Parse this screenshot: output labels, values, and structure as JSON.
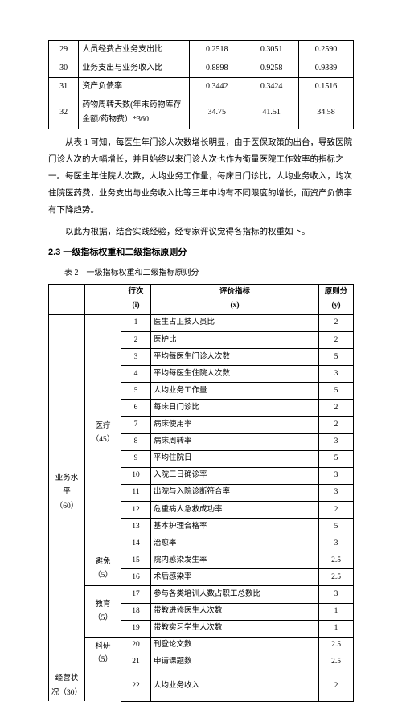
{
  "table1": {
    "rows": [
      {
        "n": "29",
        "label": "人员经费占业务支出比",
        "v1": "0.2518",
        "v2": "0.3051",
        "v3": "0.2590"
      },
      {
        "n": "30",
        "label": "业务支出与业务收入比",
        "v1": "0.8898",
        "v2": "0.9258",
        "v3": "0.9389"
      },
      {
        "n": "31",
        "label": "资产负债率",
        "v1": "0.3442",
        "v2": "0.3424",
        "v3": "0.1516"
      },
      {
        "n": "32",
        "label": "药物周转天数(年末药物库存金额/药物费）*360",
        "v1": "34.75",
        "v2": "41.51",
        "v3": "34.58"
      }
    ]
  },
  "paragraphs": {
    "p1": "从表 1 可知，每医生年门诊人次数增长明显，由于医保政策的出台，导致医院门诊人次的大幅增长，并且始终以来门诊人次也作为衡量医院工作效率的指标之一。每医生年住院人次数，人均业务工作量，每床日门诊比，人均业务收入，均次住院医药费，业务支出与业务收入比等三年中均有不同限度的增长，而资产负债率有下降趋势。",
    "p2": "以此为根据，结合实践经验，经专家评议觉得各指标的权重如下。"
  },
  "heading": "2.3 一级指标权重和二级指标原则分",
  "caption": "表 2　一级指标权重和二级指标原则分",
  "table2": {
    "header": {
      "c1": "",
      "c2": "",
      "c3": "行次\n(i)",
      "c4": "评价指标\n(x)",
      "c5": "原则分\n(y)"
    },
    "groups": [
      {
        "col1": "业务水\n平\n（60）",
        "sub": [
          {
            "col2": "医疗\n（45）",
            "rows": [
              {
                "n": "1",
                "label": "医生占卫技人员比",
                "y": "2"
              },
              {
                "n": "2",
                "label": "医护比",
                "y": "2"
              },
              {
                "n": "3",
                "label": "平均每医生门诊人次数",
                "y": "5"
              },
              {
                "n": "4",
                "label": "平均每医生住院人次数",
                "y": "3"
              },
              {
                "n": "5",
                "label": "人均业务工作量",
                "y": "5"
              },
              {
                "n": "6",
                "label": "每床日门诊比",
                "y": "2"
              },
              {
                "n": "7",
                "label": "病床使用率",
                "y": "2"
              },
              {
                "n": "8",
                "label": "病床周转率",
                "y": "3"
              },
              {
                "n": "9",
                "label": "平均住院日",
                "y": "5"
              },
              {
                "n": "10",
                "label": "入院三日确诊率",
                "y": "3"
              },
              {
                "n": "11",
                "label": "出院与入院诊断符合率",
                "y": "3"
              },
              {
                "n": "12",
                "label": "危重病人急救成功率",
                "y": "2"
              },
              {
                "n": "13",
                "label": "基本护理合格率",
                "y": "5"
              },
              {
                "n": "14",
                "label": "治愈率",
                "y": "3"
              }
            ]
          },
          {
            "col2": "避免\n（5）",
            "rows": [
              {
                "n": "15",
                "label": "院内感染发生率",
                "y": "2.5"
              },
              {
                "n": "16",
                "label": "术后感染率",
                "y": "2.5"
              }
            ]
          },
          {
            "col2": "教育\n（5）",
            "rows": [
              {
                "n": "17",
                "label": "参与各类培训人数占职工总数比",
                "y": "3"
              },
              {
                "n": "18",
                "label": "带教进修医生人次数",
                "y": "1"
              },
              {
                "n": "19",
                "label": "带教实习学生人次数",
                "y": "1"
              }
            ]
          },
          {
            "col2": "科研（5）",
            "rows": [
              {
                "n": "20",
                "label": "刊登论文数",
                "y": "2.5"
              },
              {
                "n": "21",
                "label": "申请课题数",
                "y": "2.5"
              }
            ]
          }
        ]
      },
      {
        "col1": "经营状\n况（30）",
        "sub": [
          {
            "col2": "",
            "rows": [
              {
                "n": "22",
                "label": "人均业务收入",
                "y": "2"
              }
            ]
          }
        ]
      }
    ]
  }
}
